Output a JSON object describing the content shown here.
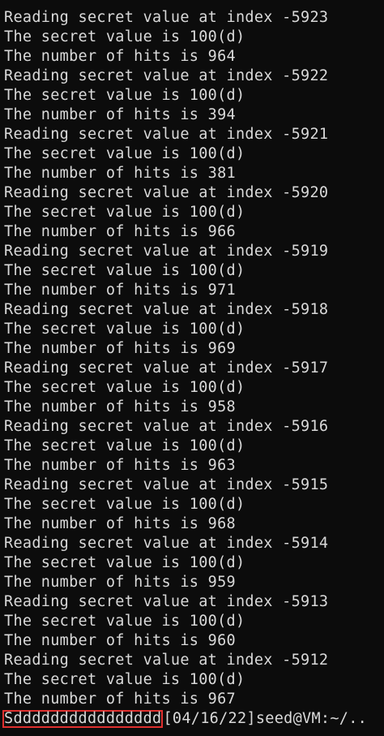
{
  "terminal": {
    "lines": [
      "Reading secret value at index -5923",
      "The secret value is 100(d)",
      "The number of hits is 964",
      "Reading secret value at index -5922",
      "The secret value is 100(d)",
      "The number of hits is 394",
      "Reading secret value at index -5921",
      "The secret value is 100(d)",
      "The number of hits is 381",
      "Reading secret value at index -5920",
      "The secret value is 100(d)",
      "The number of hits is 966",
      "Reading secret value at index -5919",
      "The secret value is 100(d)",
      "The number of hits is 971",
      "Reading secret value at index -5918",
      "The secret value is 100(d)",
      "The number of hits is 969",
      "Reading secret value at index -5917",
      "The secret value is 100(d)",
      "The number of hits is 958",
      "Reading secret value at index -5916",
      "The secret value is 100(d)",
      "The number of hits is 963",
      "Reading secret value at index -5915",
      "The secret value is 100(d)",
      "The number of hits is 968",
      "Reading secret value at index -5914",
      "The secret value is 100(d)",
      "The number of hits is 959",
      "Reading secret value at index -5913",
      "The secret value is 100(d)",
      "The number of hits is 960",
      "Reading secret value at index -5912",
      "The secret value is 100(d)",
      "The number of hits is 967"
    ],
    "prompt": {
      "highlighted_output": "Sdddddddddddddddd",
      "prompt_text": "[04/16/22]seed@VM:~/.."
    },
    "colors": {
      "background": "#0c0c0c",
      "foreground": "#d9d9d9",
      "highlight_border": "#e0302f"
    }
  }
}
